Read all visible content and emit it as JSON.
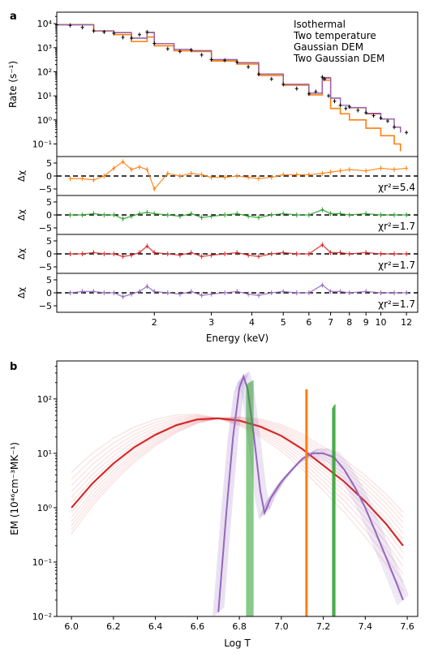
{
  "panel_a": {
    "label": "a",
    "ylabel": "Rate (s⁻¹)",
    "resid_ylabel": "Δχ",
    "xlabel": "Energy (keV)",
    "legend": [
      "Isothermal",
      "Two temperature",
      "Gaussian DEM",
      "Two Gaussian DEM"
    ],
    "chi_labels": [
      "χr²=5.4",
      "χr²=1.7",
      "χr²=1.7",
      "χr²=1.7"
    ]
  },
  "panel_b": {
    "label": "b",
    "ylabel": "EM (10⁴⁶cm⁻³MK⁻¹)",
    "xlabel": "Log T"
  },
  "colors": {
    "isothermal": "#ff7f0e",
    "two_temperature": "#2ca02c",
    "gaussian_dem": "#d62728",
    "two_gaussian_dem": "#9467bd",
    "data": "#000000"
  },
  "chart_data": [
    {
      "type": "line",
      "panel": "a-top",
      "xscale": "log",
      "yscale": "log",
      "xlim": [
        1.0,
        13.0
      ],
      "ylim": [
        0.03,
        30000
      ],
      "yticks": [
        "10⁻¹",
        "10⁰",
        "10¹",
        "10²",
        "10³",
        "10⁴"
      ],
      "series": [
        {
          "name": "data",
          "x": [
            1.0,
            1.1,
            1.2,
            1.3,
            1.4,
            1.5,
            1.6,
            1.7,
            1.8,
            1.9,
            2.0,
            2.2,
            2.4,
            2.6,
            2.8,
            3.0,
            3.3,
            3.6,
            3.9,
            4.2,
            4.6,
            5.0,
            5.5,
            6.0,
            6.3,
            6.6,
            6.7,
            6.9,
            7.2,
            7.5,
            7.8,
            8.0,
            8.5,
            9.0,
            9.5,
            10.0,
            10.5,
            11.0,
            12.0
          ],
          "y": [
            9000,
            8500,
            7000,
            5000,
            4500,
            4000,
            2700,
            2500,
            3500,
            4500,
            1500,
            900,
            700,
            800,
            500,
            320,
            300,
            250,
            160,
            80,
            50,
            30,
            20,
            12,
            15,
            60,
            50,
            10,
            6,
            4,
            3,
            3.5,
            2.5,
            2,
            1.5,
            1.2,
            0.9,
            0.5,
            0.3
          ]
        },
        {
          "name": "Isothermal",
          "x": [
            1.0,
            1.3,
            1.5,
            1.7,
            1.9,
            2.0,
            2.3,
            2.6,
            3.0,
            3.6,
            4.2,
            5.0,
            6.0,
            6.6,
            7.0,
            7.5,
            8.0,
            9.0,
            10.0,
            11.0,
            11.5
          ],
          "y": [
            9000,
            5000,
            3500,
            1800,
            2800,
            1200,
            750,
            700,
            280,
            210,
            70,
            28,
            11,
            45,
            3,
            1.8,
            1.0,
            0.45,
            0.22,
            0.1,
            0.05
          ]
        },
        {
          "name": "Two temperature",
          "x": [
            1.0,
            1.3,
            1.5,
            1.7,
            1.9,
            2.0,
            2.3,
            2.6,
            3.0,
            3.6,
            4.2,
            5.0,
            6.0,
            6.6,
            7.0,
            7.5,
            8.0,
            9.0,
            10.0,
            11.0,
            11.5
          ],
          "y": [
            9000,
            5000,
            4200,
            2500,
            4200,
            1500,
            850,
            750,
            320,
            240,
            80,
            30,
            13,
            55,
            8,
            4,
            3.2,
            1.8,
            1.1,
            0.5,
            0.3
          ]
        },
        {
          "name": "Gaussian DEM",
          "x": [
            1.0,
            1.3,
            1.5,
            1.7,
            1.9,
            2.0,
            2.3,
            2.6,
            3.0,
            3.6,
            4.2,
            5.0,
            6.0,
            6.6,
            7.0,
            7.5,
            8.0,
            9.0,
            10.0,
            11.0,
            11.5
          ],
          "y": [
            9000,
            5000,
            4200,
            2500,
            4300,
            1500,
            850,
            750,
            320,
            240,
            80,
            30,
            13,
            55,
            8,
            4,
            3.2,
            1.8,
            1.1,
            0.5,
            0.3
          ]
        },
        {
          "name": "Two Gaussian DEM",
          "x": [
            1.0,
            1.3,
            1.5,
            1.7,
            1.9,
            2.0,
            2.3,
            2.6,
            3.0,
            3.6,
            4.2,
            5.0,
            6.0,
            6.6,
            7.0,
            7.5,
            8.0,
            9.0,
            10.0,
            11.0,
            11.5
          ],
          "y": [
            9000,
            5000,
            4300,
            2500,
            4400,
            1500,
            850,
            760,
            320,
            240,
            80,
            30,
            13,
            58,
            8,
            4,
            3.3,
            1.9,
            1.1,
            0.5,
            0.3
          ]
        }
      ]
    },
    {
      "type": "scatter",
      "panel": "a-residuals",
      "xscale": "log",
      "xlim": [
        1.0,
        13.0
      ],
      "ylim": [
        -7.5,
        7.5
      ],
      "yticks": [
        -5,
        0,
        5
      ],
      "xticks": [
        2,
        3,
        4,
        5,
        6,
        7,
        8,
        9,
        10,
        12
      ],
      "series": [
        {
          "name": "Isothermal",
          "x": [
            1.1,
            1.2,
            1.3,
            1.4,
            1.5,
            1.6,
            1.7,
            1.8,
            1.9,
            2.0,
            2.2,
            2.4,
            2.6,
            2.8,
            3.0,
            3.3,
            3.6,
            3.9,
            4.2,
            4.6,
            5.0,
            5.5,
            6.0,
            6.6,
            7.0,
            7.5,
            8.0,
            9.0,
            10.0,
            11.0,
            12.0
          ],
          "y": [
            -1,
            -1,
            -1.5,
            0,
            3,
            5.5,
            2.5,
            3.5,
            2.5,
            -5,
            1,
            0,
            1,
            0.5,
            -0.5,
            -0.5,
            0,
            -0.5,
            -1,
            -0.5,
            0.5,
            0.5,
            0.5,
            1,
            1.5,
            2,
            2.5,
            2,
            3,
            2.5,
            3
          ]
        },
        {
          "name": "Two temperature",
          "x": [
            1.1,
            1.2,
            1.3,
            1.4,
            1.5,
            1.6,
            1.7,
            1.8,
            1.9,
            2.0,
            2.2,
            2.4,
            2.6,
            2.8,
            3.0,
            3.3,
            3.6,
            3.9,
            4.2,
            4.6,
            5.0,
            5.5,
            6.0,
            6.6,
            7.0,
            7.5,
            8.0,
            9.0,
            10.0,
            11.0,
            12.0
          ],
          "y": [
            0,
            0,
            0.5,
            0,
            0,
            -1.5,
            -0.5,
            0.5,
            1,
            0.5,
            0,
            -0.5,
            0.5,
            -1,
            -0.5,
            0,
            0.5,
            -0.5,
            -1,
            0,
            0.5,
            0,
            0,
            2,
            0.5,
            0.5,
            0,
            0.5,
            0,
            0,
            0
          ]
        },
        {
          "name": "Gaussian DEM",
          "x": [
            1.1,
            1.2,
            1.3,
            1.4,
            1.5,
            1.6,
            1.7,
            1.8,
            1.9,
            2.0,
            2.2,
            2.4,
            2.6,
            2.8,
            3.0,
            3.3,
            3.6,
            3.9,
            4.2,
            4.6,
            5.0,
            5.5,
            6.0,
            6.6,
            7.0,
            7.5,
            8.0,
            9.0,
            10.0,
            11.0,
            12.0
          ],
          "y": [
            0,
            0,
            0.5,
            0,
            0,
            -1,
            -0.5,
            0.5,
            3,
            0.5,
            0,
            -0.5,
            0.5,
            -1,
            -0.5,
            0,
            0.5,
            -0.5,
            -1,
            0,
            0.5,
            0,
            0,
            3.5,
            0.5,
            0.5,
            0,
            0.5,
            0,
            0,
            0
          ]
        },
        {
          "name": "Two Gaussian DEM",
          "x": [
            1.1,
            1.2,
            1.3,
            1.4,
            1.5,
            1.6,
            1.7,
            1.8,
            1.9,
            2.0,
            2.2,
            2.4,
            2.6,
            2.8,
            3.0,
            3.3,
            3.6,
            3.9,
            4.2,
            4.6,
            5.0,
            5.5,
            6.0,
            6.6,
            7.0,
            7.5,
            8.0,
            9.0,
            10.0,
            11.0,
            12.0
          ],
          "y": [
            0,
            0.5,
            0.5,
            0,
            0,
            -1.5,
            -0.5,
            0.5,
            2.5,
            0.5,
            0,
            -0.5,
            0.5,
            -1,
            -0.5,
            0,
            0.5,
            -0.5,
            -1,
            0,
            0.5,
            0,
            0,
            3,
            0.5,
            0.5,
            0,
            0.5,
            0,
            0,
            0
          ]
        }
      ]
    },
    {
      "type": "line",
      "panel": "b",
      "xlim": [
        5.93,
        7.65
      ],
      "ylim": [
        0.01,
        500
      ],
      "yscale": "log",
      "xticks": [
        "6.0",
        "6.2",
        "6.4",
        "6.6",
        "6.8",
        "7.0",
        "7.2",
        "7.4",
        "7.6"
      ],
      "yticks": [
        "10⁻²",
        "10⁻¹",
        "10⁰",
        "10¹",
        "10²"
      ],
      "series": [
        {
          "name": "Gaussian DEM",
          "x": [
            6.0,
            6.1,
            6.2,
            6.3,
            6.4,
            6.5,
            6.6,
            6.7,
            6.8,
            6.9,
            7.0,
            7.1,
            7.2,
            7.3,
            7.4,
            7.5,
            7.58
          ],
          "y": [
            1.0,
            2.8,
            6.5,
            13,
            22,
            33,
            42,
            44,
            40,
            31,
            21,
            12,
            6,
            3,
            1.3,
            0.5,
            0.2
          ]
        },
        {
          "name": "Two Gaussian DEM",
          "x": [
            6.7,
            6.74,
            6.77,
            6.8,
            6.82,
            6.84,
            6.87,
            6.9,
            6.92,
            6.95,
            7.0,
            7.05,
            7.1,
            7.15,
            7.2,
            7.25,
            7.3,
            7.35,
            7.4,
            7.45,
            7.5,
            7.55,
            7.58
          ],
          "y": [
            0.012,
            1,
            20,
            160,
            260,
            150,
            20,
            2,
            0.8,
            1.5,
            3,
            5,
            8,
            10,
            10,
            8.5,
            5,
            2.4,
            1,
            0.35,
            0.12,
            0.04,
            0.02
          ]
        },
        {
          "name": "Isothermal",
          "x": [
            7.12,
            7.12
          ],
          "y": [
            0.01,
            150
          ]
        },
        {
          "name": "Two temperature",
          "x": [
            6.85,
            6.85,
            7.25,
            7.25
          ],
          "y": [
            0.01,
            220,
            0.01,
            80
          ]
        }
      ]
    }
  ]
}
